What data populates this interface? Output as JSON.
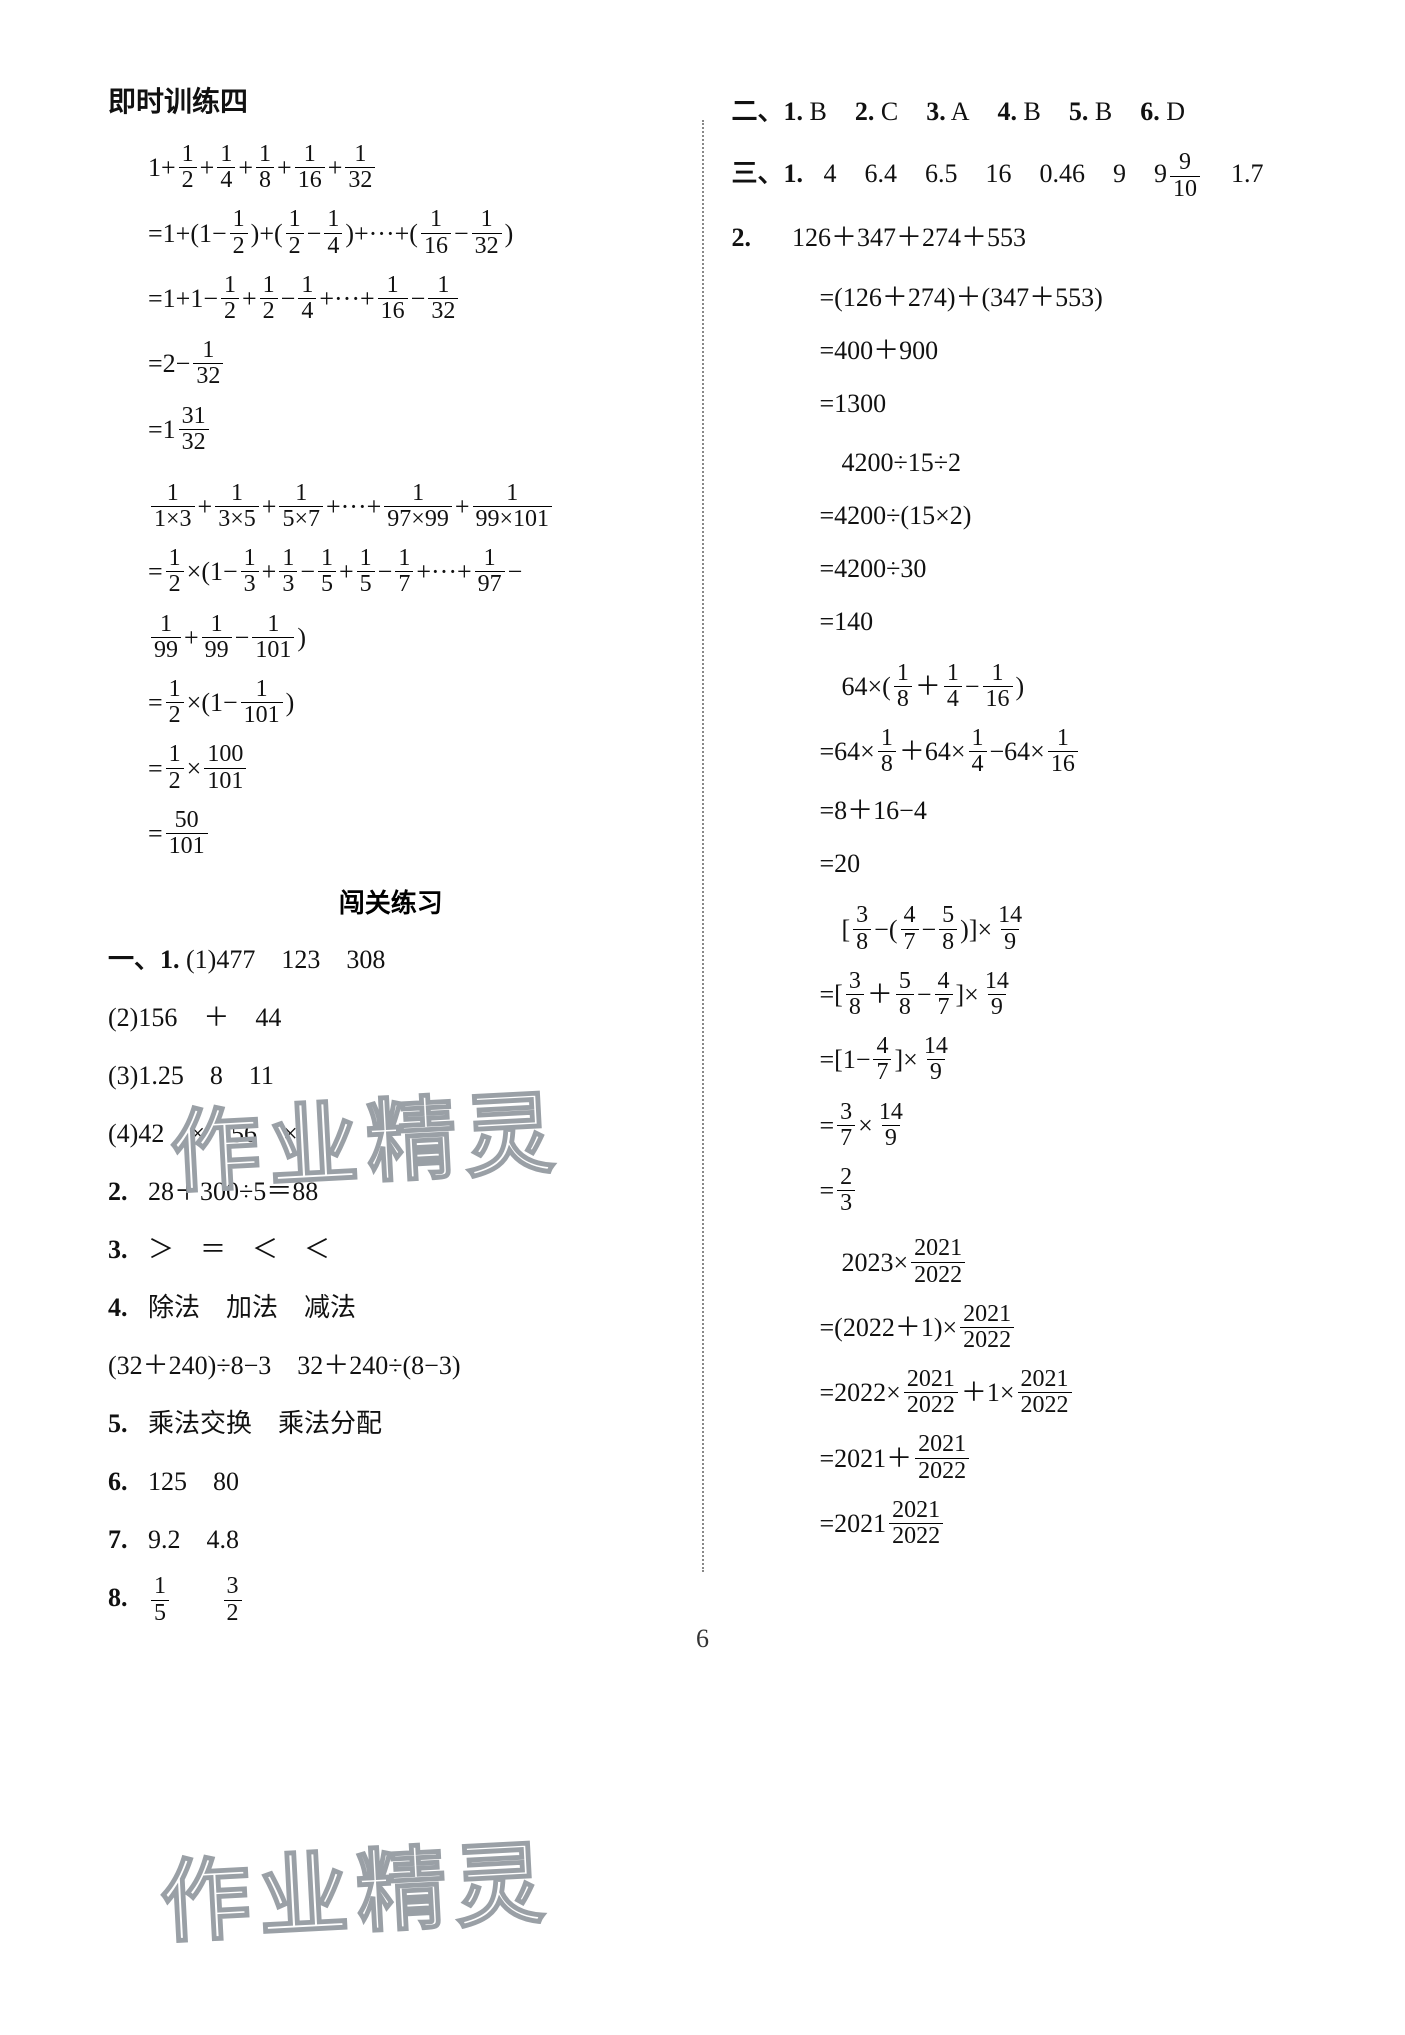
{
  "page_number": "6",
  "watermark_text": "作业精灵",
  "watermark_color_stroke": "#9aa0a6",
  "text_color": "#111111",
  "background_color": "#ffffff",
  "divider_color": "#888888",
  "font_family": "SimSun",
  "base_fontsize_pt": 26,
  "left": {
    "title": "即时训练四",
    "problem1": {
      "lines": [
        "1+__F(1,2)__+__F(1,4)__+__F(1,8)__+__F(1,16)__+__F(1,32)__",
        "=1+(1−__F(1,2)__)+(__F(1,2)__−__F(1,4)__)+···+(__F(1,16)__−__F(1,32)__)",
        "=1+1−__F(1,2)__+__F(1,2)__−__F(1,4)__+···+__F(1,16)__−__F(1,32)__",
        "=2−__F(1,32)__",
        "=1__F(31,32)__"
      ]
    },
    "problem2": {
      "lines": [
        "__F(1,1×3)__+__F(1,3×5)__+__F(1,5×7)__+···+__F(1,97×99)__+__F(1,99×101)__",
        "=__F(1,2)__×(1−__F(1,3)__+__F(1,3)__−__F(1,5)__+__F(1,5)__−__F(1,7)__+···+__F(1,97)__−",
        "__F(1,99)__+__F(1,99)__−__F(1,101)__)",
        "=__F(1,2)__×(1−__F(1,101)__)",
        "=__F(1,2)__×__F(100,101)__",
        "=__F(50,101)__"
      ]
    },
    "sub_title": "闯关练习",
    "section1_label": "一、",
    "q1_label": "1.",
    "q1_items": [
      "(1)477　123　308",
      "(2)156　＋　44",
      "(3)1.25　8　11",
      "(4)42　×　56　×"
    ],
    "q2": {
      "label": "2.",
      "text": "28＋300÷5＝88"
    },
    "q3": {
      "label": "3.",
      "text": "＞　＝　＜　＜"
    },
    "q4": {
      "label": "4.",
      "line1": "除法　加法　减法",
      "line2": "(32＋240)÷8−3　32＋240÷(8−3)"
    },
    "q5": {
      "label": "5.",
      "text": "乘法交换　乘法分配"
    },
    "q6": {
      "label": "6.",
      "text": "125　80"
    },
    "q7": {
      "label": "7.",
      "text": "9.2　4.8"
    },
    "q8": {
      "label": "8.",
      "parts": [
        "__F(1,5)__",
        "__F(3,2)__"
      ]
    }
  },
  "right": {
    "section2": {
      "label": "二、",
      "items": [
        {
          "n": "1.",
          "v": "B"
        },
        {
          "n": "2.",
          "v": "C"
        },
        {
          "n": "3.",
          "v": "A"
        },
        {
          "n": "4.",
          "v": "B"
        },
        {
          "n": "5.",
          "v": "B"
        },
        {
          "n": "6.",
          "v": "D"
        }
      ]
    },
    "section3": {
      "label": "三、",
      "q1": {
        "label": "1.",
        "values": [
          "4",
          "6.4",
          "6.5",
          "16",
          "0.46",
          "9",
          "9__F(9,10)__",
          "1.7"
        ]
      },
      "q2_label": "2.",
      "calc_a": [
        "126＋347＋274＋553",
        "=(126＋274)＋(347＋553)",
        "=400＋900",
        "=1300"
      ],
      "calc_b": [
        "4200÷15÷2",
        "=4200÷(15×2)",
        "=4200÷30",
        "=140"
      ],
      "calc_c": [
        "64×(__F(1,8)__＋__F(1,4)__−__F(1,16)__)",
        "=64×__F(1,8)__＋64×__F(1,4)__−64×__F(1,16)__",
        "=8＋16−4",
        "=20"
      ],
      "calc_d": [
        "[__F(3,8)__−(__F(4,7)__−__F(5,8)__)]×__F(14,9)__",
        "=[__F(3,8)__＋__F(5,8)__−__F(4,7)__]×__F(14,9)__",
        "=[1−__F(4,7)__]×__F(14,9)__",
        "=__F(3,7)__×__F(14,9)__",
        "=__F(2,3)__"
      ],
      "calc_e": [
        "2023×__F(2021,2022)__",
        "=(2022＋1)×__F(2021,2022)__",
        "=2022×__F(2021,2022)__＋1×__F(2021,2022)__",
        "=2021＋__F(2021,2022)__",
        "=2021__F(2021,2022)__"
      ]
    }
  }
}
